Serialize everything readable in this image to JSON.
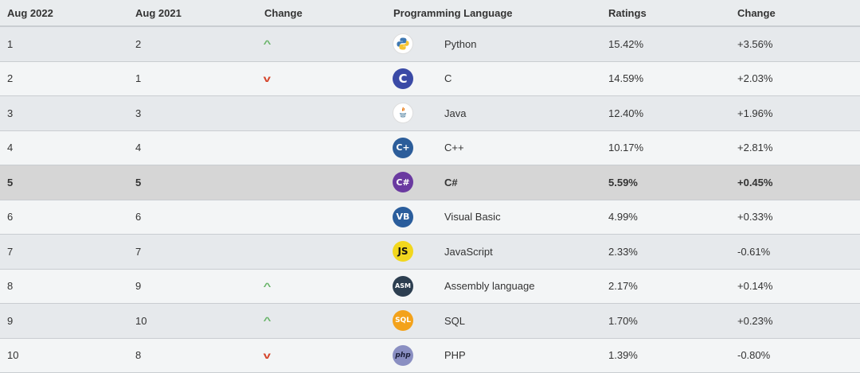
{
  "header": {
    "rank": "Aug 2022",
    "prev": "Aug 2021",
    "change": "Change",
    "language": "Programming Language",
    "ratings": "Ratings",
    "delta": "Change"
  },
  "rows": [
    {
      "rank": "1",
      "prev": "2",
      "trend": "up",
      "icon": "python-logo-icon",
      "name": "Python",
      "rating": "15.42%",
      "delta": "+3.56%"
    },
    {
      "rank": "2",
      "prev": "1",
      "trend": "down",
      "icon": "c-logo-icon",
      "name": "C",
      "rating": "14.59%",
      "delta": "+2.03%"
    },
    {
      "rank": "3",
      "prev": "3",
      "trend": "none",
      "icon": "java-logo-icon",
      "name": "Java",
      "rating": "12.40%",
      "delta": "+1.96%"
    },
    {
      "rank": "4",
      "prev": "4",
      "trend": "none",
      "icon": "cpp-logo-icon",
      "name": "C++",
      "rating": "10.17%",
      "delta": "+2.81%"
    },
    {
      "rank": "5",
      "prev": "5",
      "trend": "none",
      "icon": "csharp-logo-icon",
      "name": "C#",
      "rating": "5.59%",
      "delta": "+0.45%"
    },
    {
      "rank": "6",
      "prev": "6",
      "trend": "none",
      "icon": "visual-basic-logo-icon",
      "name": "Visual Basic",
      "rating": "4.99%",
      "delta": "+0.33%"
    },
    {
      "rank": "7",
      "prev": "7",
      "trend": "none",
      "icon": "javascript-logo-icon",
      "name": "JavaScript",
      "rating": "2.33%",
      "delta": "-0.61%"
    },
    {
      "rank": "8",
      "prev": "9",
      "trend": "up",
      "icon": "assembly-logo-icon",
      "name": "Assembly language",
      "rating": "2.17%",
      "delta": "+0.14%"
    },
    {
      "rank": "9",
      "prev": "10",
      "trend": "up",
      "icon": "sql-logo-icon",
      "name": "SQL",
      "rating": "1.70%",
      "delta": "+0.23%"
    },
    {
      "rank": "10",
      "prev": "8",
      "trend": "down",
      "icon": "php-logo-icon",
      "name": "PHP",
      "rating": "1.39%",
      "delta": "-0.80%"
    }
  ],
  "logos": {
    "c": "C",
    "cpp": "C+",
    "csharp": "C#",
    "vb": "VB",
    "js": "JS",
    "asm": "ASM",
    "sql": "SQL",
    "php": "php"
  },
  "colors": {
    "trend_up": "#6bb56b",
    "trend_down": "#d5462c",
    "highlight_row": "#d6d6d6"
  }
}
